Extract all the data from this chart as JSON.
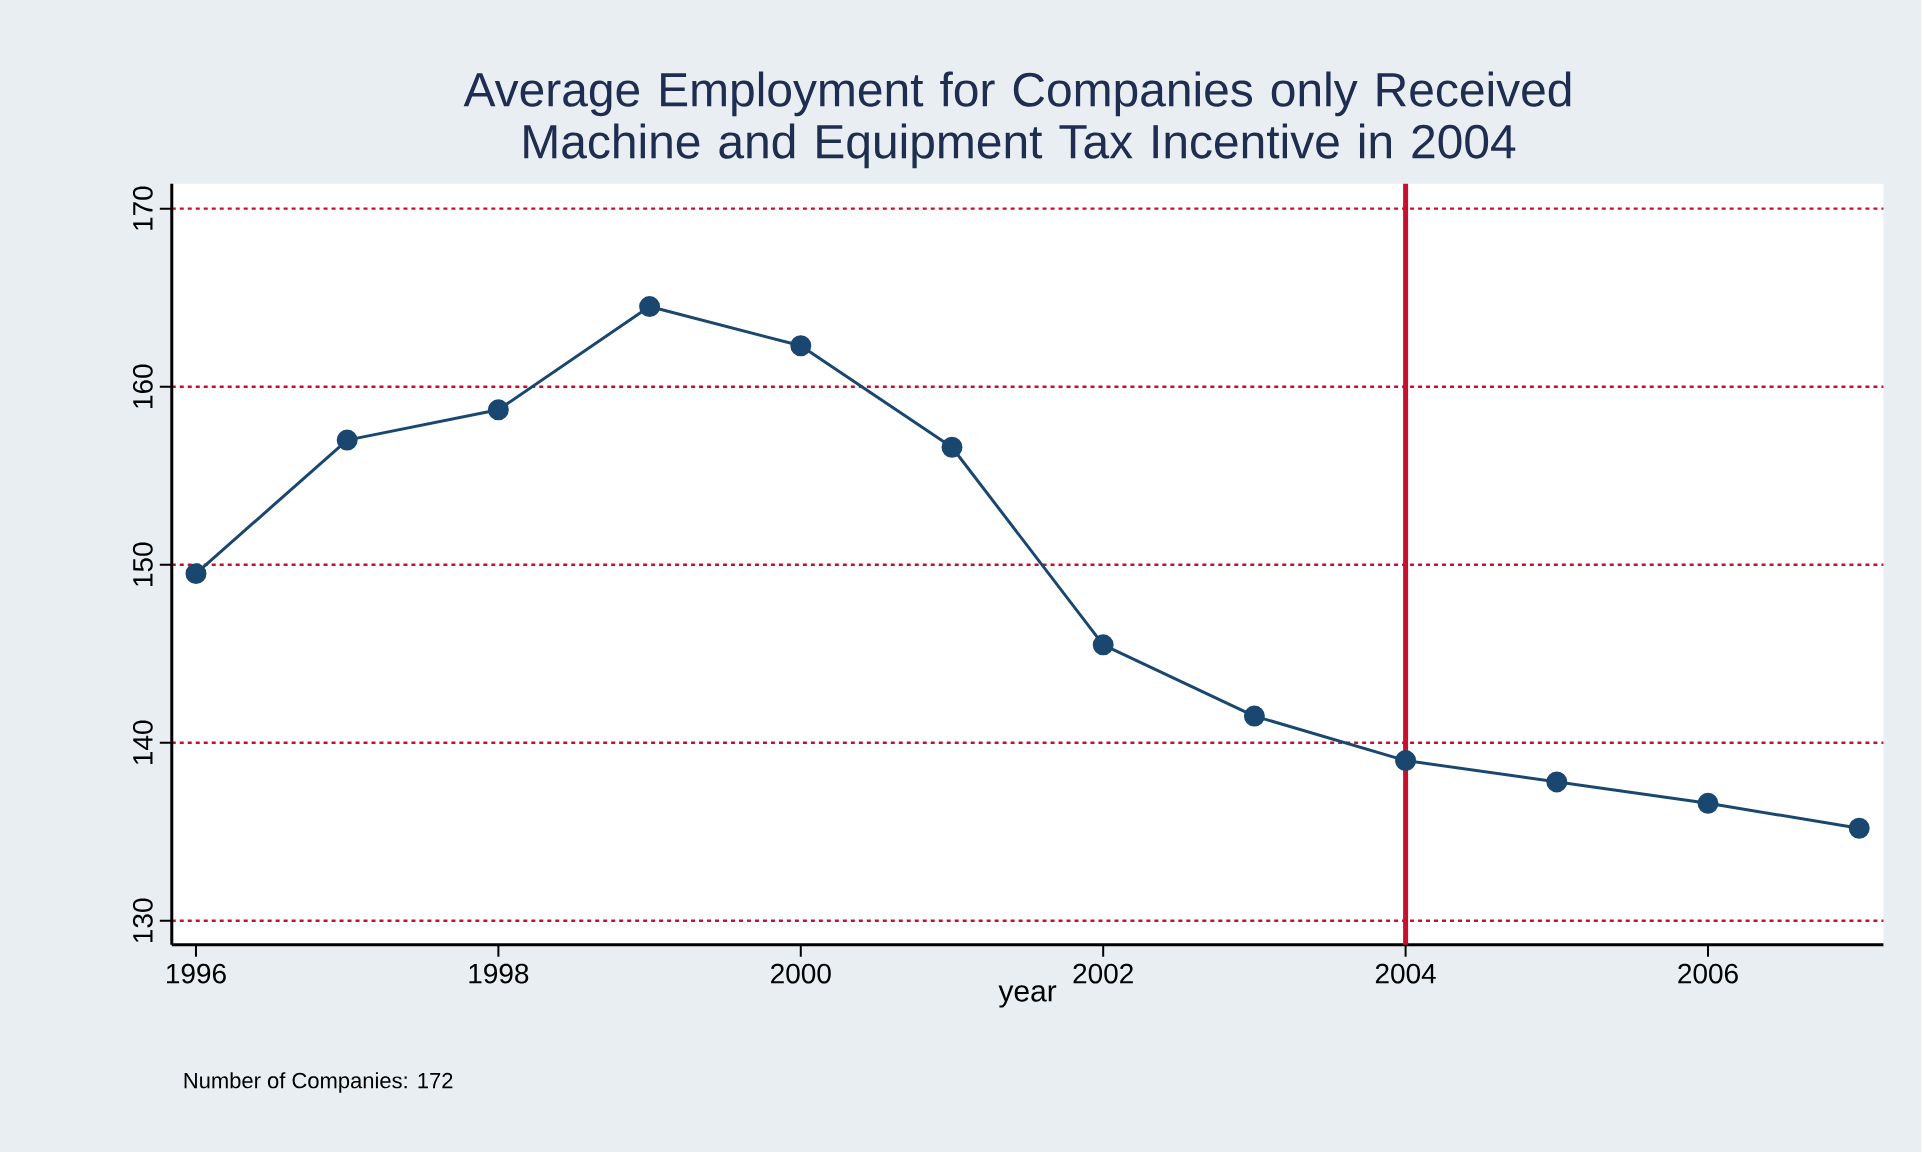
{
  "chart_data": {
    "type": "line",
    "title": "Average Employment for Companies only Received Machine and Equipment Tax Incentive in 2004",
    "xlabel": "year",
    "x": [
      1996,
      1997,
      1998,
      1999,
      2000,
      2001,
      2002,
      2003,
      2004,
      2005,
      2006,
      2007
    ],
    "series": [
      {
        "color": "#1a476f",
        "values": [
          149.5,
          157.0,
          158.7,
          164.5,
          162.3,
          156.6,
          145.5,
          141.5,
          139.0,
          137.8,
          136.6,
          135.2
        ]
      }
    ],
    "xlim": [
      1995.84,
      2007.16
    ],
    "ylim": [
      128.66,
      171.4
    ],
    "xticks": [
      1996,
      1998,
      2000,
      2002,
      2004,
      2006
    ],
    "yticks": [
      130,
      140,
      150,
      160,
      170
    ],
    "ref_lines": [
      {
        "axis": "x",
        "value": 2004,
        "color": "#c8102e"
      }
    ],
    "annotations": [
      "Number of Companies: 172"
    ],
    "grid": "y",
    "marker": "circle",
    "line_style": "solid"
  }
}
